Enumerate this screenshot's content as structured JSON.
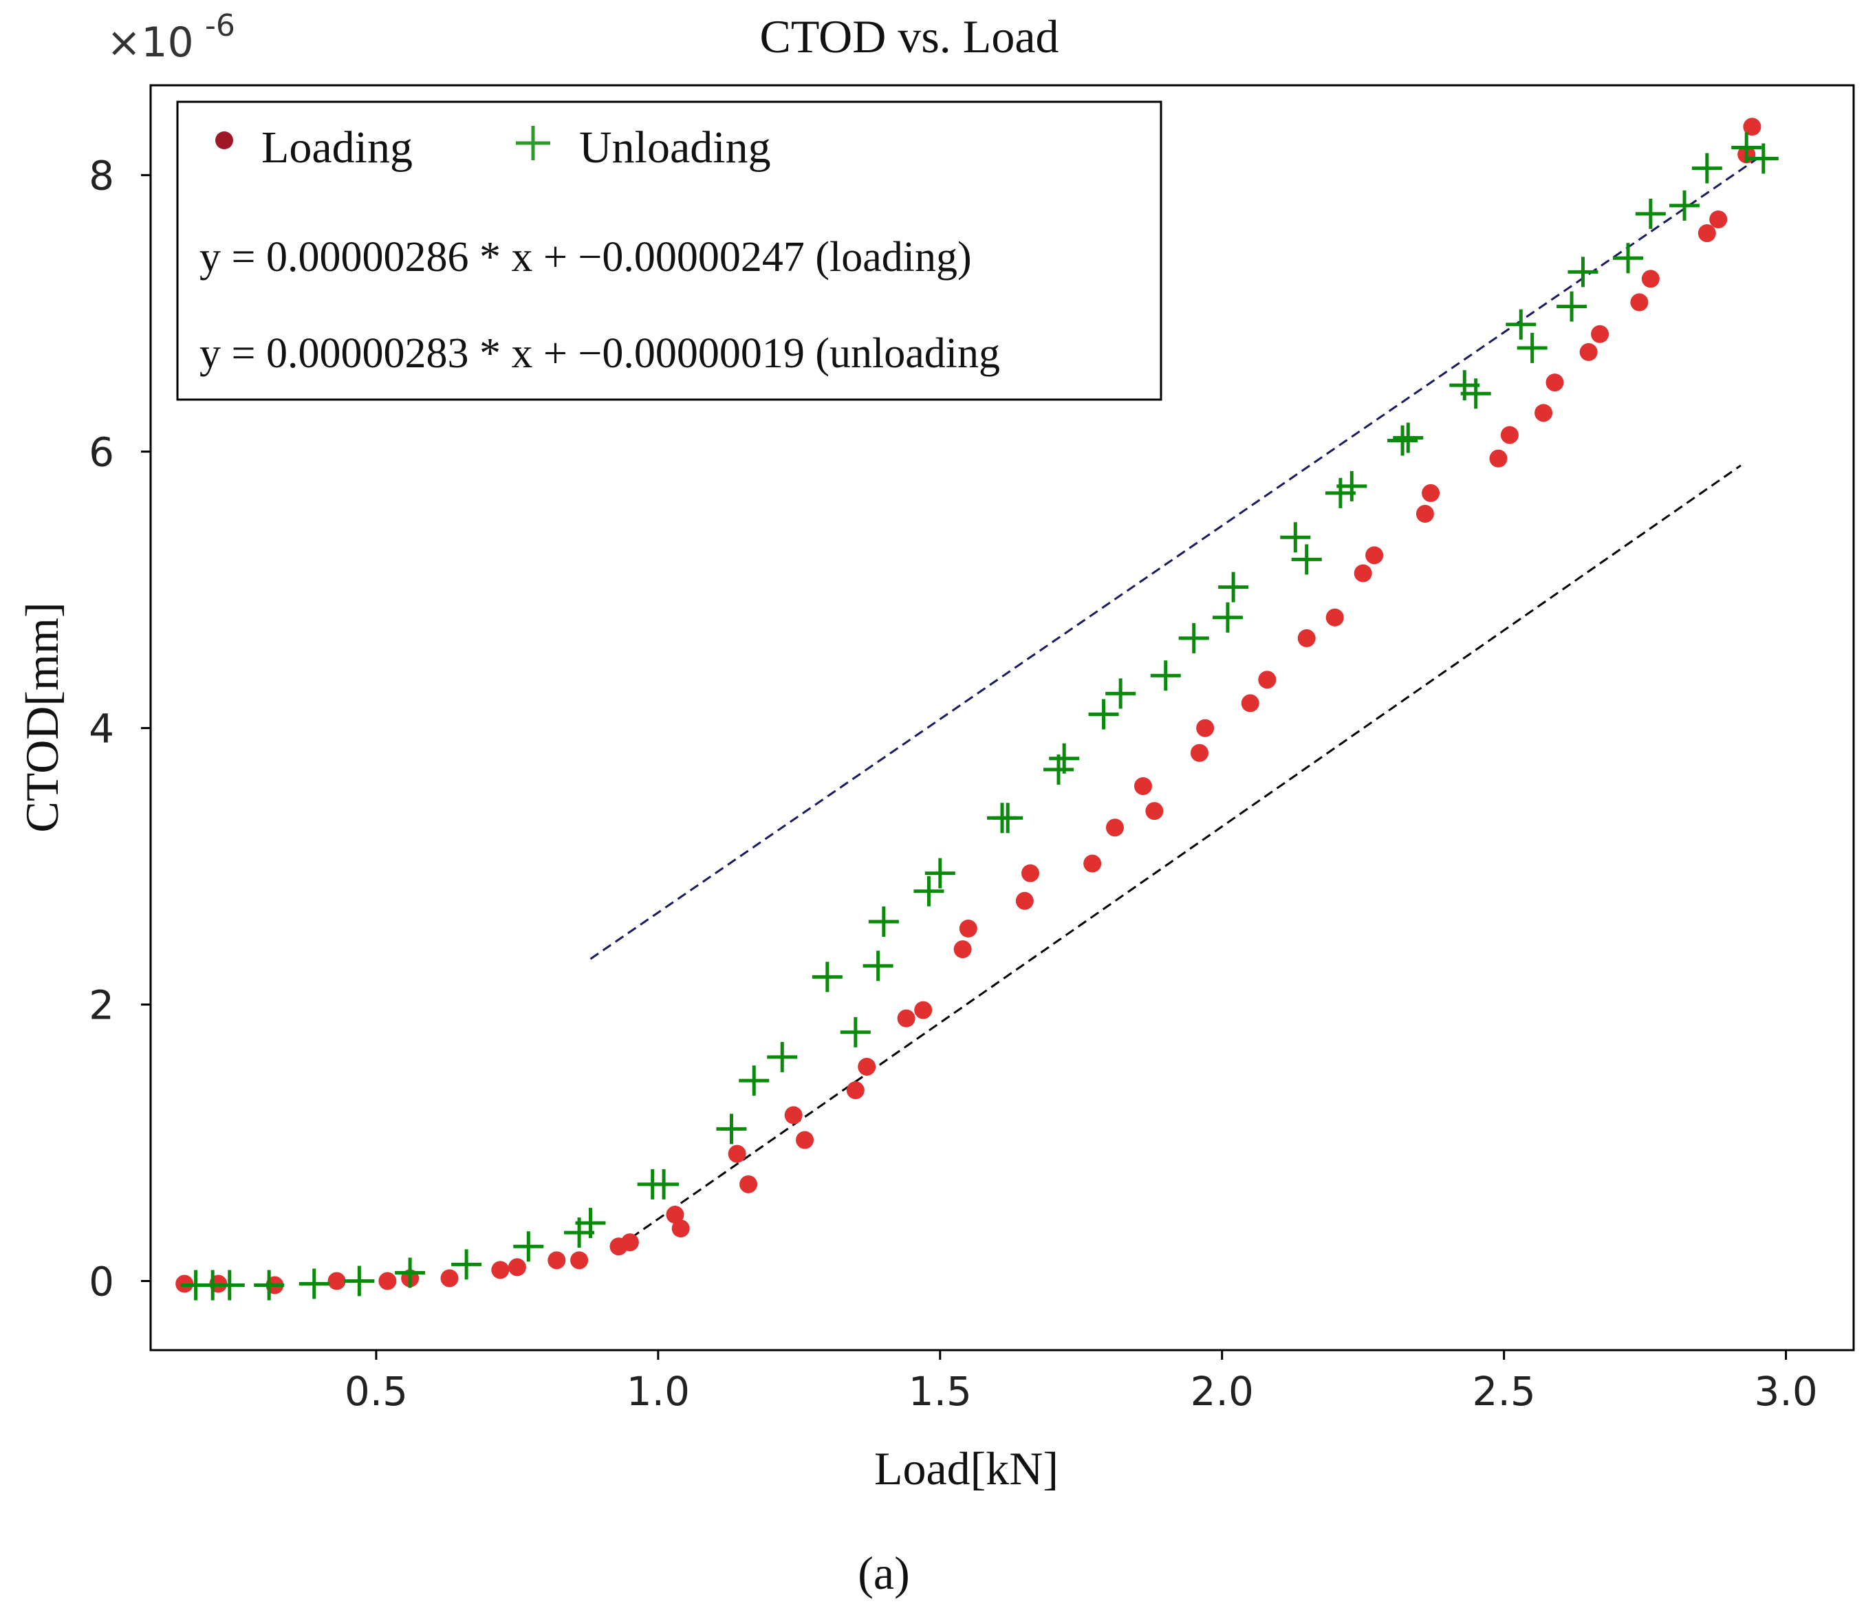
{
  "chart_data": {
    "type": "scatter",
    "title": "CTOD vs. Load",
    "xlabel": "Load[kN]",
    "ylabel": "CTOD[mm]",
    "y_scale_label": "×10",
    "y_scale_exponent": "-6",
    "caption": "(a)",
    "xlim": [
      0.1,
      3.12
    ],
    "ylim": [
      -0.5,
      8.65
    ],
    "xticks": [
      0.5,
      1.0,
      1.5,
      2.0,
      2.5,
      3.0
    ],
    "xtick_labels": [
      "0.5",
      "1.0",
      "1.5",
      "2.0",
      "2.5",
      "3.0"
    ],
    "yticks": [
      0,
      2,
      4,
      6,
      8
    ],
    "ytick_labels": [
      "0",
      "2",
      "4",
      "6",
      "8"
    ],
    "legend_position": "top-left",
    "colors": {
      "loading": "#e03030",
      "loading_legend": "#a01828",
      "unloading": "#0a8a0a",
      "unloading_legend": "#2a9a2a",
      "fit_loading": "#000000",
      "fit_unloading": "#1a1a60"
    },
    "series": [
      {
        "name": "Loading",
        "marker": "circle",
        "x": [
          0.16,
          0.22,
          0.32,
          0.43,
          0.52,
          0.56,
          0.63,
          0.72,
          0.75,
          0.82,
          0.86,
          0.93,
          0.95,
          1.03,
          1.04,
          1.14,
          1.16,
          1.24,
          1.26,
          1.35,
          1.37,
          1.44,
          1.47,
          1.54,
          1.55,
          1.65,
          1.66,
          1.77,
          1.81,
          1.86,
          1.88,
          1.96,
          1.97,
          2.05,
          2.08,
          2.15,
          2.2,
          2.25,
          2.27,
          2.36,
          2.37,
          2.49,
          2.51,
          2.57,
          2.59,
          2.65,
          2.67,
          2.74,
          2.76,
          2.86,
          2.88,
          2.93,
          2.94
        ],
        "y": [
          -0.02,
          -0.02,
          -0.03,
          0.0,
          0.0,
          0.02,
          0.02,
          0.08,
          0.1,
          0.15,
          0.15,
          0.25,
          0.28,
          0.48,
          0.38,
          0.92,
          0.7,
          1.2,
          1.02,
          1.38,
          1.55,
          1.9,
          1.96,
          2.4,
          2.55,
          2.75,
          2.95,
          3.02,
          3.28,
          3.58,
          3.4,
          3.82,
          4.0,
          4.18,
          4.35,
          4.65,
          4.8,
          5.12,
          5.25,
          5.55,
          5.7,
          5.95,
          6.12,
          6.28,
          6.5,
          6.72,
          6.85,
          7.08,
          7.25,
          7.58,
          7.68,
          8.15,
          8.35
        ]
      },
      {
        "name": "Unloading",
        "marker": "plus",
        "x": [
          0.18,
          0.21,
          0.24,
          0.31,
          0.39,
          0.47,
          0.56,
          0.66,
          0.77,
          0.86,
          0.88,
          0.99,
          1.01,
          1.13,
          1.17,
          1.22,
          1.3,
          1.35,
          1.39,
          1.4,
          1.48,
          1.5,
          1.61,
          1.62,
          1.71,
          1.72,
          1.79,
          1.82,
          1.9,
          1.95,
          2.01,
          2.02,
          2.13,
          2.15,
          2.21,
          2.23,
          2.32,
          2.33,
          2.43,
          2.45,
          2.53,
          2.55,
          2.62,
          2.64,
          2.72,
          2.76,
          2.82,
          2.86,
          2.93,
          2.96
        ],
        "y": [
          -0.03,
          -0.03,
          -0.03,
          -0.03,
          -0.02,
          0.0,
          0.06,
          0.12,
          0.25,
          0.35,
          0.42,
          0.7,
          0.7,
          1.1,
          1.45,
          1.62,
          2.2,
          1.8,
          2.28,
          2.6,
          2.82,
          2.95,
          3.35,
          3.35,
          3.7,
          3.78,
          4.1,
          4.25,
          4.38,
          4.65,
          4.8,
          5.02,
          5.38,
          5.22,
          5.7,
          5.75,
          6.08,
          6.1,
          6.48,
          6.42,
          6.92,
          6.75,
          7.05,
          7.3,
          7.4,
          7.72,
          7.78,
          8.05,
          8.2,
          8.12
        ]
      }
    ],
    "fit_lines": [
      {
        "name": "loading",
        "x": [
          0.93,
          2.92
        ],
        "y": [
          0.25,
          5.9
        ]
      },
      {
        "name": "unloading",
        "x": [
          0.88,
          2.96
        ],
        "y": [
          2.33,
          8.15
        ]
      }
    ],
    "equations": [
      "y = 0.00000286 * x  + −0.00000247 (loading)",
      "y = 0.00000283 * x + −0.00000019 (unloading"
    ]
  }
}
